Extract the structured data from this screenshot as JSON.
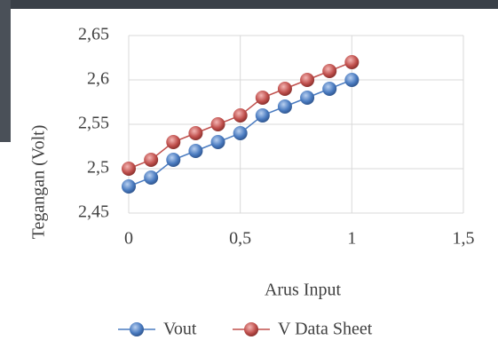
{
  "chart_data": {
    "type": "line",
    "x": [
      0,
      0.1,
      0.2,
      0.3,
      0.4,
      0.5,
      0.6,
      0.7,
      0.8,
      0.9,
      1
    ],
    "series": [
      {
        "name": "Vout",
        "color": "#4a7bc0",
        "values": [
          2.48,
          2.49,
          2.51,
          2.52,
          2.53,
          2.54,
          2.56,
          2.57,
          2.58,
          2.59,
          2.6
        ]
      },
      {
        "name": "V Data Sheet",
        "color": "#c0504d",
        "values": [
          2.5,
          2.51,
          2.53,
          2.54,
          2.55,
          2.56,
          2.58,
          2.59,
          2.6,
          2.61,
          2.62
        ]
      }
    ],
    "xlabel": "Arus Input",
    "ylabel": "Tegangan (Volt)",
    "xlim": [
      0,
      1.5
    ],
    "ylim": [
      2.45,
      2.65
    ],
    "xticks": [
      0,
      {
        "value": 0.5,
        "label": "0,5"
      },
      1,
      {
        "value": 1.5,
        "label": "1,5"
      }
    ],
    "yticks": [
      {
        "value": 2.45,
        "label": "2,45"
      },
      {
        "value": 2.5,
        "label": "2,5"
      },
      {
        "value": 2.55,
        "label": "2,55"
      },
      {
        "value": 2.6,
        "label": "2,6"
      },
      {
        "value": 2.65,
        "label": "2,65"
      }
    ],
    "grid": true,
    "legend": "bottom"
  }
}
